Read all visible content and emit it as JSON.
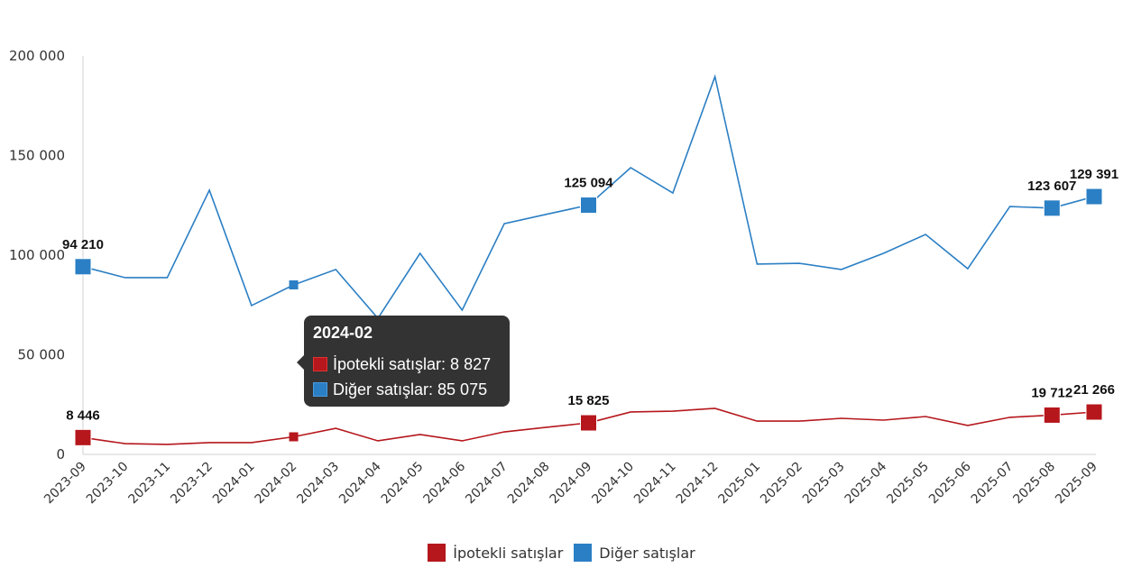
{
  "chart_data": {
    "type": "line",
    "title": "",
    "xlabel": "",
    "ylabel": "",
    "ylim": [
      0,
      200000
    ],
    "yticks": [
      0,
      50000,
      100000,
      150000,
      200000
    ],
    "ytick_labels": [
      "0",
      "50 000",
      "100 000",
      "150 000",
      "200 000"
    ],
    "grid": false,
    "legend_position": "bottom",
    "categories": [
      "2023-09",
      "2023-10",
      "2023-11",
      "2023-12",
      "2024-01",
      "2024-02",
      "2024-03",
      "2024-04",
      "2024-05",
      "2024-06",
      "2024-07",
      "2024-08",
      "2024-09",
      "2024-10",
      "2024-11",
      "2024-12",
      "2025-01",
      "2025-02",
      "2025-03",
      "2025-04",
      "2025-05",
      "2025-06",
      "2025-07",
      "2025-08",
      "2025-09"
    ],
    "series": [
      {
        "name": "İpotekli satışlar",
        "color": "#b5171c",
        "values": [
          8446,
          5400,
          5000,
          5900,
          5900,
          8827,
          13100,
          6800,
          10000,
          6800,
          11300,
          13600,
          15825,
          21300,
          21700,
          23100,
          16700,
          16700,
          18100,
          17200,
          19000,
          14500,
          18600,
          19712,
          21266
        ]
      },
      {
        "name": "Diğer satışlar",
        "color": "#2b7fc4",
        "values": [
          94210,
          88700,
          88700,
          132600,
          74700,
          85075,
          92800,
          68300,
          100900,
          72400,
          115800,
          120500,
          125094,
          143900,
          131200,
          189600,
          95500,
          95900,
          92800,
          100900,
          110400,
          93200,
          124400,
          123607,
          129391
        ]
      }
    ],
    "highlighted_points": [
      0,
      12,
      23,
      24
    ],
    "data_labels": {
      "İpotekli satışlar": [
        "8 446",
        "15 825",
        "19 712",
        "21 266"
      ],
      "Diğer satışlar": [
        "94 210",
        "125 094",
        "123 607",
        "129 391"
      ]
    },
    "hover_index": 5
  },
  "tooltip": {
    "title": "2024-02",
    "rows": [
      {
        "label": "İpotekli satışlar: 8 827",
        "color": "#b5171c"
      },
      {
        "label": "Diğer satışlar: 85 075",
        "color": "#2b7fc4"
      }
    ]
  },
  "legend": [
    {
      "label": "İpotekli satışlar",
      "color": "#b5171c"
    },
    {
      "label": "Diğer satışlar",
      "color": "#2b7fc4"
    }
  ]
}
